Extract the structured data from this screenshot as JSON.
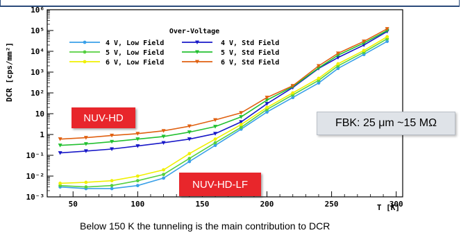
{
  "chart_data": {
    "type": "line",
    "xlabel": "T [K]",
    "ylabel": "DCR [cps/mm²]",
    "xlim": [
      30,
      305
    ],
    "ylim_log10": [
      -3,
      6
    ],
    "yscale": "log",
    "x_ticks": [
      50,
      100,
      150,
      200,
      250,
      300
    ],
    "y_ticks": [
      "10⁻³",
      "10⁻²",
      "10⁻¹",
      "1",
      "10",
      "10²",
      "10³",
      "10⁴",
      "10⁵",
      "10⁶"
    ],
    "legend_title": "Over-Voltage",
    "legend_position": "top-left",
    "series": [
      {
        "name": "4 V, Low Field",
        "color": "#3aa0e8",
        "marker": "circle",
        "x": [
          40,
          60,
          80,
          100,
          120,
          140,
          160,
          180,
          200,
          220,
          240,
          255,
          275,
          293
        ],
        "y": [
          0.003,
          0.0025,
          0.0025,
          0.0035,
          0.008,
          0.05,
          0.3,
          1.8,
          12,
          60,
          300,
          1500,
          7000,
          30000
        ]
      },
      {
        "name": "4 V, Std Field",
        "color": "#1818c8",
        "marker": "triangle-down",
        "x": [
          40,
          60,
          80,
          100,
          120,
          140,
          160,
          180,
          200,
          220,
          240,
          255,
          275,
          293
        ],
        "y": [
          0.13,
          0.16,
          0.2,
          0.28,
          0.4,
          0.6,
          1.1,
          4,
          30,
          180,
          1500,
          5000,
          20000,
          90000
        ]
      },
      {
        "name": "5 V, Low Field",
        "color": "#55d040",
        "marker": "circle",
        "x": [
          40,
          60,
          80,
          100,
          120,
          140,
          160,
          180,
          200,
          220,
          240,
          255,
          275,
          293
        ],
        "y": [
          0.0035,
          0.003,
          0.0035,
          0.006,
          0.012,
          0.07,
          0.4,
          2.2,
          16,
          80,
          400,
          2000,
          9000,
          40000
        ]
      },
      {
        "name": "5 V, Std Field",
        "color": "#22c030",
        "marker": "triangle-down",
        "x": [
          40,
          60,
          80,
          100,
          120,
          140,
          160,
          180,
          200,
          220,
          240,
          255,
          275,
          293
        ],
        "y": [
          0.3,
          0.35,
          0.45,
          0.6,
          0.8,
          1.3,
          2.4,
          7,
          45,
          200,
          1600,
          6500,
          25000,
          100000
        ]
      },
      {
        "name": "6 V, Low Field",
        "color": "#f0f000",
        "marker": "circle",
        "x": [
          40,
          60,
          80,
          100,
          120,
          140,
          160,
          180,
          200,
          220,
          240,
          255,
          275,
          293
        ],
        "y": [
          0.0045,
          0.005,
          0.006,
          0.01,
          0.02,
          0.12,
          0.6,
          3,
          20,
          100,
          500,
          2500,
          11000,
          50000
        ]
      },
      {
        "name": "6 V, Std Field",
        "color": "#e06010",
        "marker": "triangle-down",
        "x": [
          40,
          60,
          80,
          100,
          120,
          140,
          160,
          180,
          200,
          220,
          240,
          255,
          275,
          293
        ],
        "y": [
          0.6,
          0.7,
          0.9,
          1.1,
          1.5,
          2.5,
          5,
          11,
          60,
          220,
          2000,
          8000,
          30000,
          120000
        ]
      }
    ]
  },
  "annotations": {
    "nuv_hd": "NUV-HD",
    "nuv_hd_lf": "NUV-HD-LF",
    "fbk": "FBK: 25 μm ~15 MΩ"
  },
  "caption": "Below 150 K the tunneling is the main contribution to DCR"
}
